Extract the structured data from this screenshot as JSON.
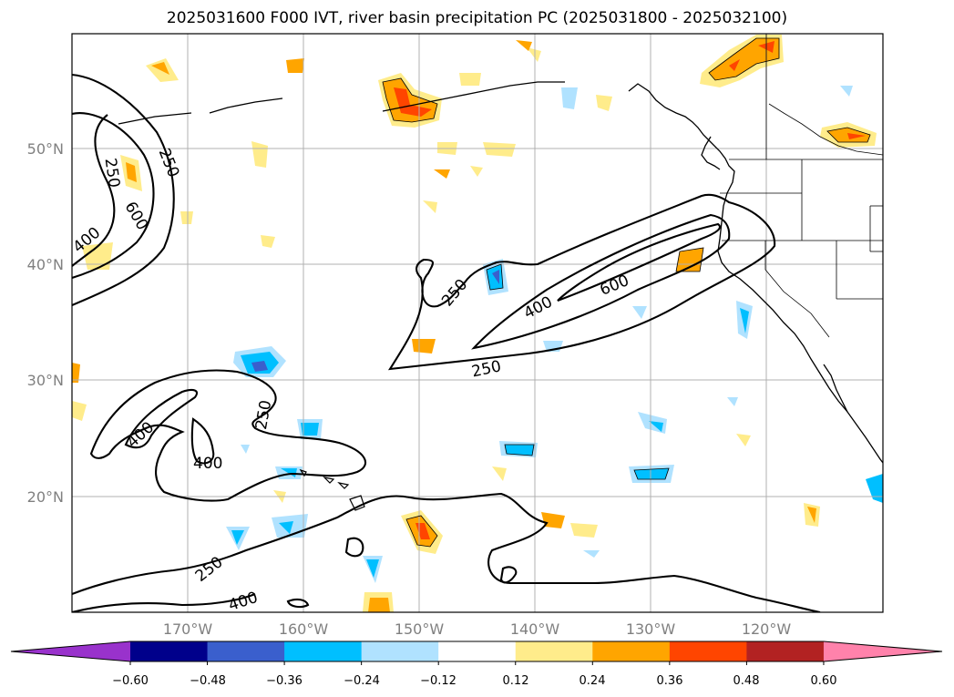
{
  "title": "2025031600 F000 IVT, river basin precipitation PC (2025031800 - 2025032100)",
  "map": {
    "longitude_labels": [
      "170°W",
      "160°W",
      "150°W",
      "140°W",
      "130°W",
      "120°W"
    ],
    "latitude_labels": [
      "50°N",
      "40°N",
      "30°N",
      "20°N"
    ],
    "contour_labels": [
      "250",
      "250",
      "400",
      "600",
      "250",
      "400",
      "600",
      "250",
      "400",
      "250",
      "400",
      "250",
      "400"
    ],
    "ivt_contour_levels": [
      250,
      400,
      600
    ]
  },
  "colorbar": {
    "tick_labels": [
      "−0.60",
      "−0.48",
      "−0.36",
      "−0.24",
      "−0.12",
      "0.12",
      "0.24",
      "0.36",
      "0.48",
      "0.60"
    ],
    "colors": [
      "#9932cc",
      "#00008b",
      "#3a5fcd",
      "#00bfff",
      "#b0e2ff",
      "#ffffff",
      "#ffec8b",
      "#ffa500",
      "#ff4500",
      "#b22222",
      "#ff82ab"
    ]
  },
  "chart_data": {
    "type": "map",
    "title": "2025031600 F000 IVT, river basin precipitation PC (2025031800 - 2025032100)",
    "lon_range": [
      -180,
      -110
    ],
    "lat_range": [
      10,
      60
    ],
    "contour_field": "IVT",
    "contour_levels": [
      250,
      400,
      600
    ],
    "fill_field": "river basin precipitation PC",
    "fill_levels": [
      -0.6,
      -0.48,
      -0.36,
      -0.24,
      -0.12,
      0.12,
      0.24,
      0.36,
      0.48,
      0.6
    ],
    "grid": true
  }
}
